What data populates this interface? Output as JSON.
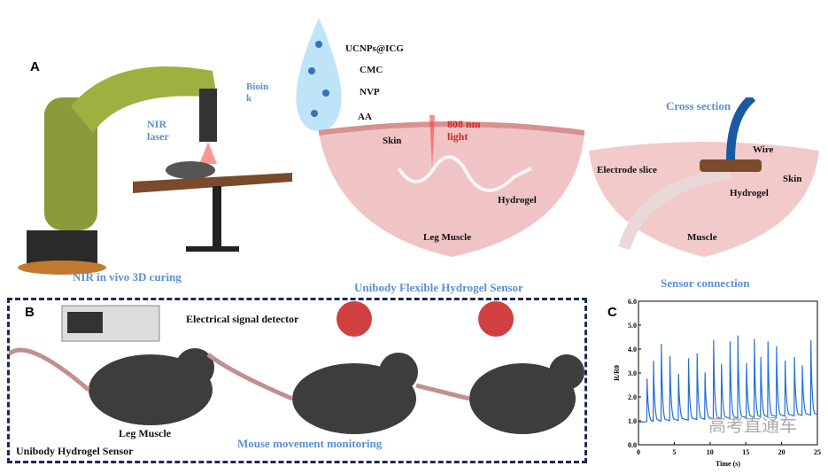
{
  "panels": {
    "a": "A",
    "b": "B",
    "c": "C"
  },
  "panel_a": {
    "bioink": "Bioin k",
    "nir_laser": "NIR laser",
    "components": [
      "UCNPs@ICG",
      "CMC",
      "NVP",
      "AA"
    ],
    "light": "808 nm light",
    "skin": "Skin",
    "hydrogel": "Hydrogel",
    "leg_muscle": "Leg  Muscle",
    "caption_left": "NIR  in vivo 3D curing",
    "caption_mid": "Unibody Flexible Hydrogel Sensor",
    "cross_section": "Cross section",
    "wire": "Wire",
    "electrode": "Electrode slice",
    "skin2": "Skin",
    "hydrogel2": "Hydrogel",
    "muscle": "Muscle",
    "caption_right": "Sensor connection"
  },
  "panel_b": {
    "detector": "Electrical signal detector",
    "leg_muscle": "Leg Muscle",
    "sensor": "Unibody Hydrogel Sensor",
    "monitoring": "Mouse movement monitoring"
  },
  "watermark": "高考直通车",
  "colors": {
    "accent_blue": "#5b8fd0",
    "signal": "#1f6fd6",
    "frame": "#1c2a55",
    "red": "#e02020"
  },
  "chart_data": {
    "type": "line",
    "xlabel": "Time (s)",
    "ylabel": "R/R0",
    "xlim": [
      0,
      25
    ],
    "ylim": [
      0,
      6
    ],
    "xticks": [
      0,
      5,
      10,
      15,
      20,
      25
    ],
    "yticks": [
      "0.0",
      "1.0",
      "2.0",
      "3.0",
      "4.0",
      "5.0",
      "6.0"
    ],
    "baseline": {
      "start": 0.95,
      "end": 1.25
    },
    "peaks": {
      "x": [
        1.2,
        2.1,
        3.2,
        4.4,
        5.6,
        7.0,
        8.2,
        9.3,
        10.5,
        11.6,
        12.8,
        13.9,
        15.1,
        16.2,
        17.1,
        18.1,
        19.3,
        20.5,
        21.8,
        22.9,
        24.1
      ],
      "y": [
        2.75,
        3.5,
        4.2,
        3.7,
        2.95,
        3.6,
        3.8,
        3.0,
        4.35,
        3.35,
        4.3,
        4.55,
        3.4,
        4.4,
        3.65,
        4.3,
        4.1,
        3.5,
        3.65,
        3.3,
        4.35
      ]
    }
  }
}
